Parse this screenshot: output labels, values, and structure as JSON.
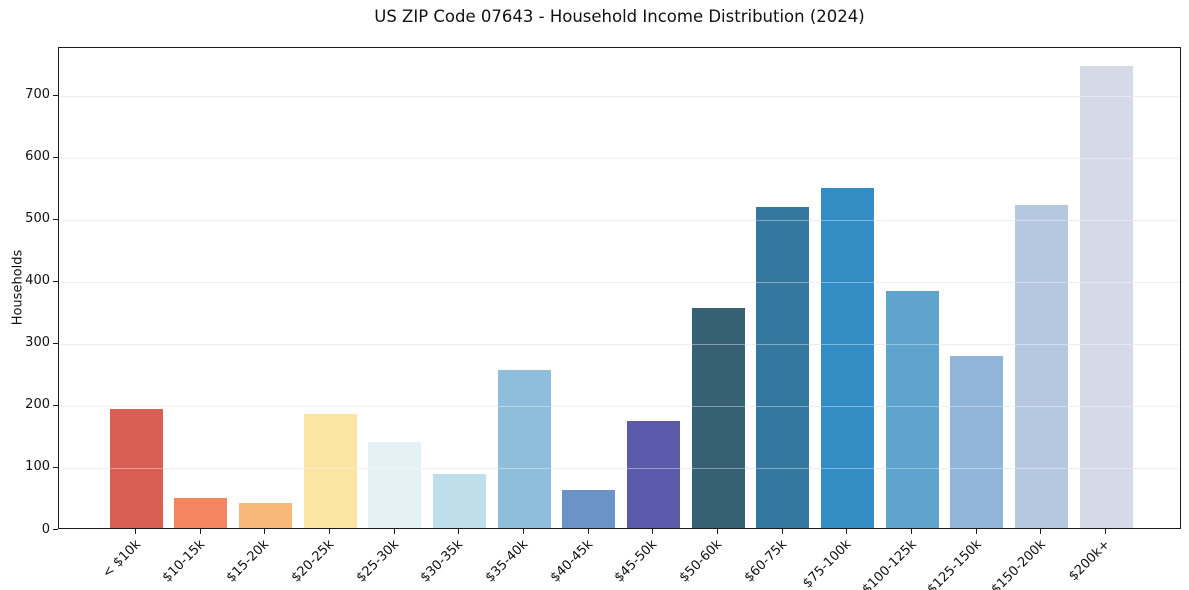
{
  "figure": {
    "title": "US ZIP Code 07643 - Household Income Distribution (2024)",
    "ylabel": "Households"
  },
  "chart_data": {
    "type": "bar",
    "title": "US ZIP Code 07643 - Household Income Distribution (2024)",
    "xlabel": "",
    "ylabel": "Households",
    "categories": [
      "< $10k",
      "$10-15k",
      "$15-20k",
      "$20-25k",
      "$25-30k",
      "$30-35k",
      "$35-40k",
      "$40-45k",
      "$45-50k",
      "$50-60k",
      "$60-75k",
      "$75-100k",
      "$100-125k",
      "$125-150k",
      "$150-200k",
      "$200k+"
    ],
    "values": [
      192,
      49,
      41,
      183,
      138,
      87,
      255,
      61,
      173,
      355,
      517,
      548,
      382,
      278,
      521,
      744
    ],
    "bar_colors": [
      "#d95f55",
      "#f4855e",
      "#f9b778",
      "#fce4a2",
      "#e4f1f5",
      "#bfdeeb",
      "#8fbedd",
      "#6b93c8",
      "#5c5aab",
      "#366174",
      "#35789f",
      "#348cc4",
      "#5ea4cd",
      "#90b5d8",
      "#b5c8e0",
      "#d6d9e8"
    ],
    "yticks": [
      0,
      100,
      200,
      300,
      400,
      500,
      600,
      700
    ],
    "ylim": [
      0,
      777
    ],
    "grid": "horizontal-only",
    "grid_color": "#e6e6e6",
    "axis_color": "#1a1a1a",
    "background_color": "#ffffff",
    "legend": "none",
    "bar_width_ratio": 0.8,
    "x_tick_rotation_deg": 45
  }
}
